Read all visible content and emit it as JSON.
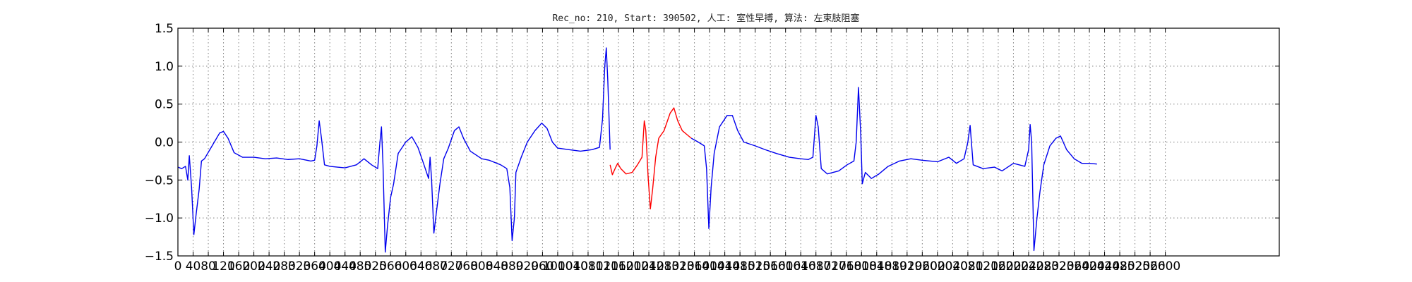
{
  "chart_data": {
    "type": "line",
    "title": "Rec_no: 210, Start: 390502, 人工: 室性早搏, 算法: 左束肢阻塞",
    "xlabel": "",
    "ylabel": "",
    "xlim": [
      0,
      2900
    ],
    "ylim": [
      -1.5,
      1.5
    ],
    "grid": true,
    "x_ticks": [
      0,
      40,
      80,
      120,
      160,
      200,
      240,
      280,
      320,
      360,
      400,
      440,
      480,
      520,
      560,
      600,
      640,
      680,
      720,
      760,
      800,
      840,
      880,
      920,
      960,
      1000,
      1040,
      1080,
      1120,
      1160,
      1200,
      1240,
      1280,
      1320,
      1360,
      1400,
      1440,
      1480,
      1520,
      1560,
      1600,
      1640,
      1680,
      1720,
      1760,
      1800,
      1840,
      1880,
      1920,
      1960,
      2000,
      2040,
      2080,
      2120,
      2160,
      2200,
      2240,
      2280,
      2320,
      2360,
      2400,
      2440,
      2480,
      2520,
      2560,
      2600
    ],
    "x_tick_labels": [
      "0",
      "40",
      "80",
      "120",
      "160",
      "200",
      "240",
      "280",
      "320",
      "360",
      "400",
      "440",
      "480",
      "520",
      "560",
      "600",
      "640",
      "680",
      "720",
      "760",
      "800",
      "840",
      "880",
      "920",
      "960",
      "1000",
      "1040",
      "1080",
      "1120",
      "1160",
      "1200",
      "1240",
      "1280",
      "1320",
      "1360",
      "1400",
      "1440",
      "1480",
      "1520",
      "1560",
      "1600",
      "1640",
      "1680",
      "1720",
      "1760",
      "1800",
      "1840",
      "1880",
      "1920",
      "1960",
      "2000",
      "2040",
      "2080",
      "2120",
      "2160",
      "2200",
      "2240",
      "2280",
      "2320",
      "2360",
      "2400",
      "2440",
      "2480",
      "2520",
      "2560",
      "2600"
    ],
    "y_ticks": [
      -1.5,
      -1.0,
      -0.5,
      0.0,
      0.5,
      1.0,
      1.5
    ],
    "y_tick_labels": [
      "−1.5",
      "−1.0",
      "−0.5",
      "0.0",
      "0.5",
      "1.0",
      "1.5"
    ],
    "series": [
      {
        "color": "#0000ee",
        "points": [
          [
            0,
            -0.33
          ],
          [
            10,
            -0.35
          ],
          [
            20,
            -0.32
          ],
          [
            26,
            -0.5
          ],
          [
            30,
            -0.18
          ],
          [
            36,
            -0.6
          ],
          [
            42,
            -1.22
          ],
          [
            48,
            -0.95
          ],
          [
            56,
            -0.62
          ],
          [
            62,
            -0.25
          ],
          [
            70,
            -0.22
          ],
          [
            90,
            -0.05
          ],
          [
            110,
            0.12
          ],
          [
            120,
            0.14
          ],
          [
            132,
            0.05
          ],
          [
            148,
            -0.14
          ],
          [
            170,
            -0.2
          ],
          [
            200,
            -0.2
          ],
          [
            230,
            -0.22
          ],
          [
            260,
            -0.21
          ],
          [
            290,
            -0.23
          ],
          [
            320,
            -0.22
          ],
          [
            350,
            -0.25
          ],
          [
            360,
            -0.24
          ],
          [
            366,
            -0.05
          ],
          [
            372,
            0.28
          ],
          [
            378,
            0.05
          ],
          [
            386,
            -0.3
          ],
          [
            400,
            -0.32
          ],
          [
            420,
            -0.33
          ],
          [
            440,
            -0.34
          ],
          [
            470,
            -0.3
          ],
          [
            490,
            -0.22
          ],
          [
            510,
            -0.3
          ],
          [
            526,
            -0.35
          ],
          [
            532,
            0.0
          ],
          [
            536,
            0.2
          ],
          [
            540,
            -0.3
          ],
          [
            546,
            -1.45
          ],
          [
            552,
            -1.1
          ],
          [
            560,
            -0.73
          ],
          [
            568,
            -0.55
          ],
          [
            580,
            -0.15
          ],
          [
            600,
            0.0
          ],
          [
            616,
            0.07
          ],
          [
            632,
            -0.07
          ],
          [
            648,
            -0.3
          ],
          [
            660,
            -0.48
          ],
          [
            664,
            -0.2
          ],
          [
            668,
            -0.5
          ],
          [
            674,
            -1.2
          ],
          [
            680,
            -0.95
          ],
          [
            690,
            -0.55
          ],
          [
            700,
            -0.22
          ],
          [
            712,
            -0.08
          ],
          [
            728,
            0.15
          ],
          [
            740,
            0.2
          ],
          [
            752,
            0.05
          ],
          [
            770,
            -0.12
          ],
          [
            800,
            -0.22
          ],
          [
            820,
            -0.24
          ],
          [
            850,
            -0.3
          ],
          [
            866,
            -0.35
          ],
          [
            874,
            -0.6
          ],
          [
            880,
            -1.3
          ],
          [
            886,
            -1.0
          ],
          [
            890,
            -0.4
          ],
          [
            904,
            -0.2
          ],
          [
            920,
            0.0
          ],
          [
            940,
            0.15
          ],
          [
            958,
            0.25
          ],
          [
            972,
            0.18
          ],
          [
            986,
            0.0
          ],
          [
            1000,
            -0.08
          ],
          [
            1030,
            -0.1
          ],
          [
            1060,
            -0.12
          ],
          [
            1090,
            -0.1
          ],
          [
            1110,
            -0.07
          ],
          [
            1118,
            0.3
          ],
          [
            1124,
            1.0
          ],
          [
            1128,
            1.24
          ],
          [
            1132,
            0.8
          ],
          [
            1138,
            -0.1
          ]
        ]
      },
      {
        "color": "#ff0000",
        "points": [
          [
            1138,
            -0.3
          ],
          [
            1144,
            -0.43
          ],
          [
            1152,
            -0.34
          ],
          [
            1158,
            -0.28
          ],
          [
            1166,
            -0.35
          ],
          [
            1180,
            -0.42
          ],
          [
            1196,
            -0.4
          ],
          [
            1210,
            -0.3
          ],
          [
            1222,
            -0.2
          ],
          [
            1228,
            0.28
          ],
          [
            1232,
            0.15
          ],
          [
            1238,
            -0.45
          ],
          [
            1244,
            -0.88
          ],
          [
            1250,
            -0.62
          ],
          [
            1258,
            -0.2
          ],
          [
            1266,
            0.05
          ],
          [
            1280,
            0.15
          ],
          [
            1296,
            0.38
          ],
          [
            1306,
            0.45
          ],
          [
            1316,
            0.28
          ],
          [
            1328,
            0.15
          ],
          [
            1340,
            0.1
          ],
          [
            1352,
            0.05
          ]
        ]
      },
      {
        "color": "#0000ee",
        "points": [
          [
            1352,
            0.05
          ],
          [
            1370,
            0.0
          ],
          [
            1386,
            -0.05
          ],
          [
            1392,
            -0.35
          ],
          [
            1398,
            -1.14
          ],
          [
            1404,
            -0.6
          ],
          [
            1412,
            -0.15
          ],
          [
            1426,
            0.2
          ],
          [
            1446,
            0.35
          ],
          [
            1460,
            0.35
          ],
          [
            1474,
            0.15
          ],
          [
            1490,
            0.0
          ],
          [
            1520,
            -0.05
          ],
          [
            1546,
            -0.1
          ],
          [
            1576,
            -0.15
          ],
          [
            1610,
            -0.2
          ],
          [
            1640,
            -0.22
          ],
          [
            1660,
            -0.23
          ],
          [
            1672,
            -0.2
          ],
          [
            1680,
            0.35
          ],
          [
            1686,
            0.2
          ],
          [
            1694,
            -0.35
          ],
          [
            1710,
            -0.42
          ],
          [
            1740,
            -0.38
          ],
          [
            1762,
            -0.3
          ],
          [
            1780,
            -0.25
          ],
          [
            1786,
            0.0
          ],
          [
            1792,
            0.72
          ],
          [
            1798,
            0.1
          ],
          [
            1802,
            -0.55
          ],
          [
            1810,
            -0.4
          ],
          [
            1826,
            -0.48
          ],
          [
            1846,
            -0.42
          ],
          [
            1870,
            -0.32
          ],
          [
            1900,
            -0.25
          ],
          [
            1930,
            -0.22
          ],
          [
            1960,
            -0.24
          ],
          [
            2000,
            -0.26
          ],
          [
            2030,
            -0.2
          ],
          [
            2050,
            -0.28
          ],
          [
            2070,
            -0.22
          ],
          [
            2080,
            0.0
          ],
          [
            2086,
            0.22
          ],
          [
            2094,
            -0.3
          ],
          [
            2120,
            -0.35
          ],
          [
            2150,
            -0.33
          ],
          [
            2170,
            -0.38
          ],
          [
            2200,
            -0.28
          ],
          [
            2230,
            -0.32
          ],
          [
            2240,
            -0.1
          ],
          [
            2244,
            0.23
          ],
          [
            2248,
            0.0
          ],
          [
            2254,
            -1.43
          ],
          [
            2262,
            -1.0
          ],
          [
            2270,
            -0.65
          ],
          [
            2280,
            -0.3
          ],
          [
            2296,
            -0.05
          ],
          [
            2312,
            0.05
          ],
          [
            2324,
            0.08
          ],
          [
            2340,
            -0.1
          ],
          [
            2360,
            -0.22
          ],
          [
            2380,
            -0.28
          ],
          [
            2400,
            -0.28
          ],
          [
            2420,
            -0.29
          ]
        ]
      }
    ]
  }
}
